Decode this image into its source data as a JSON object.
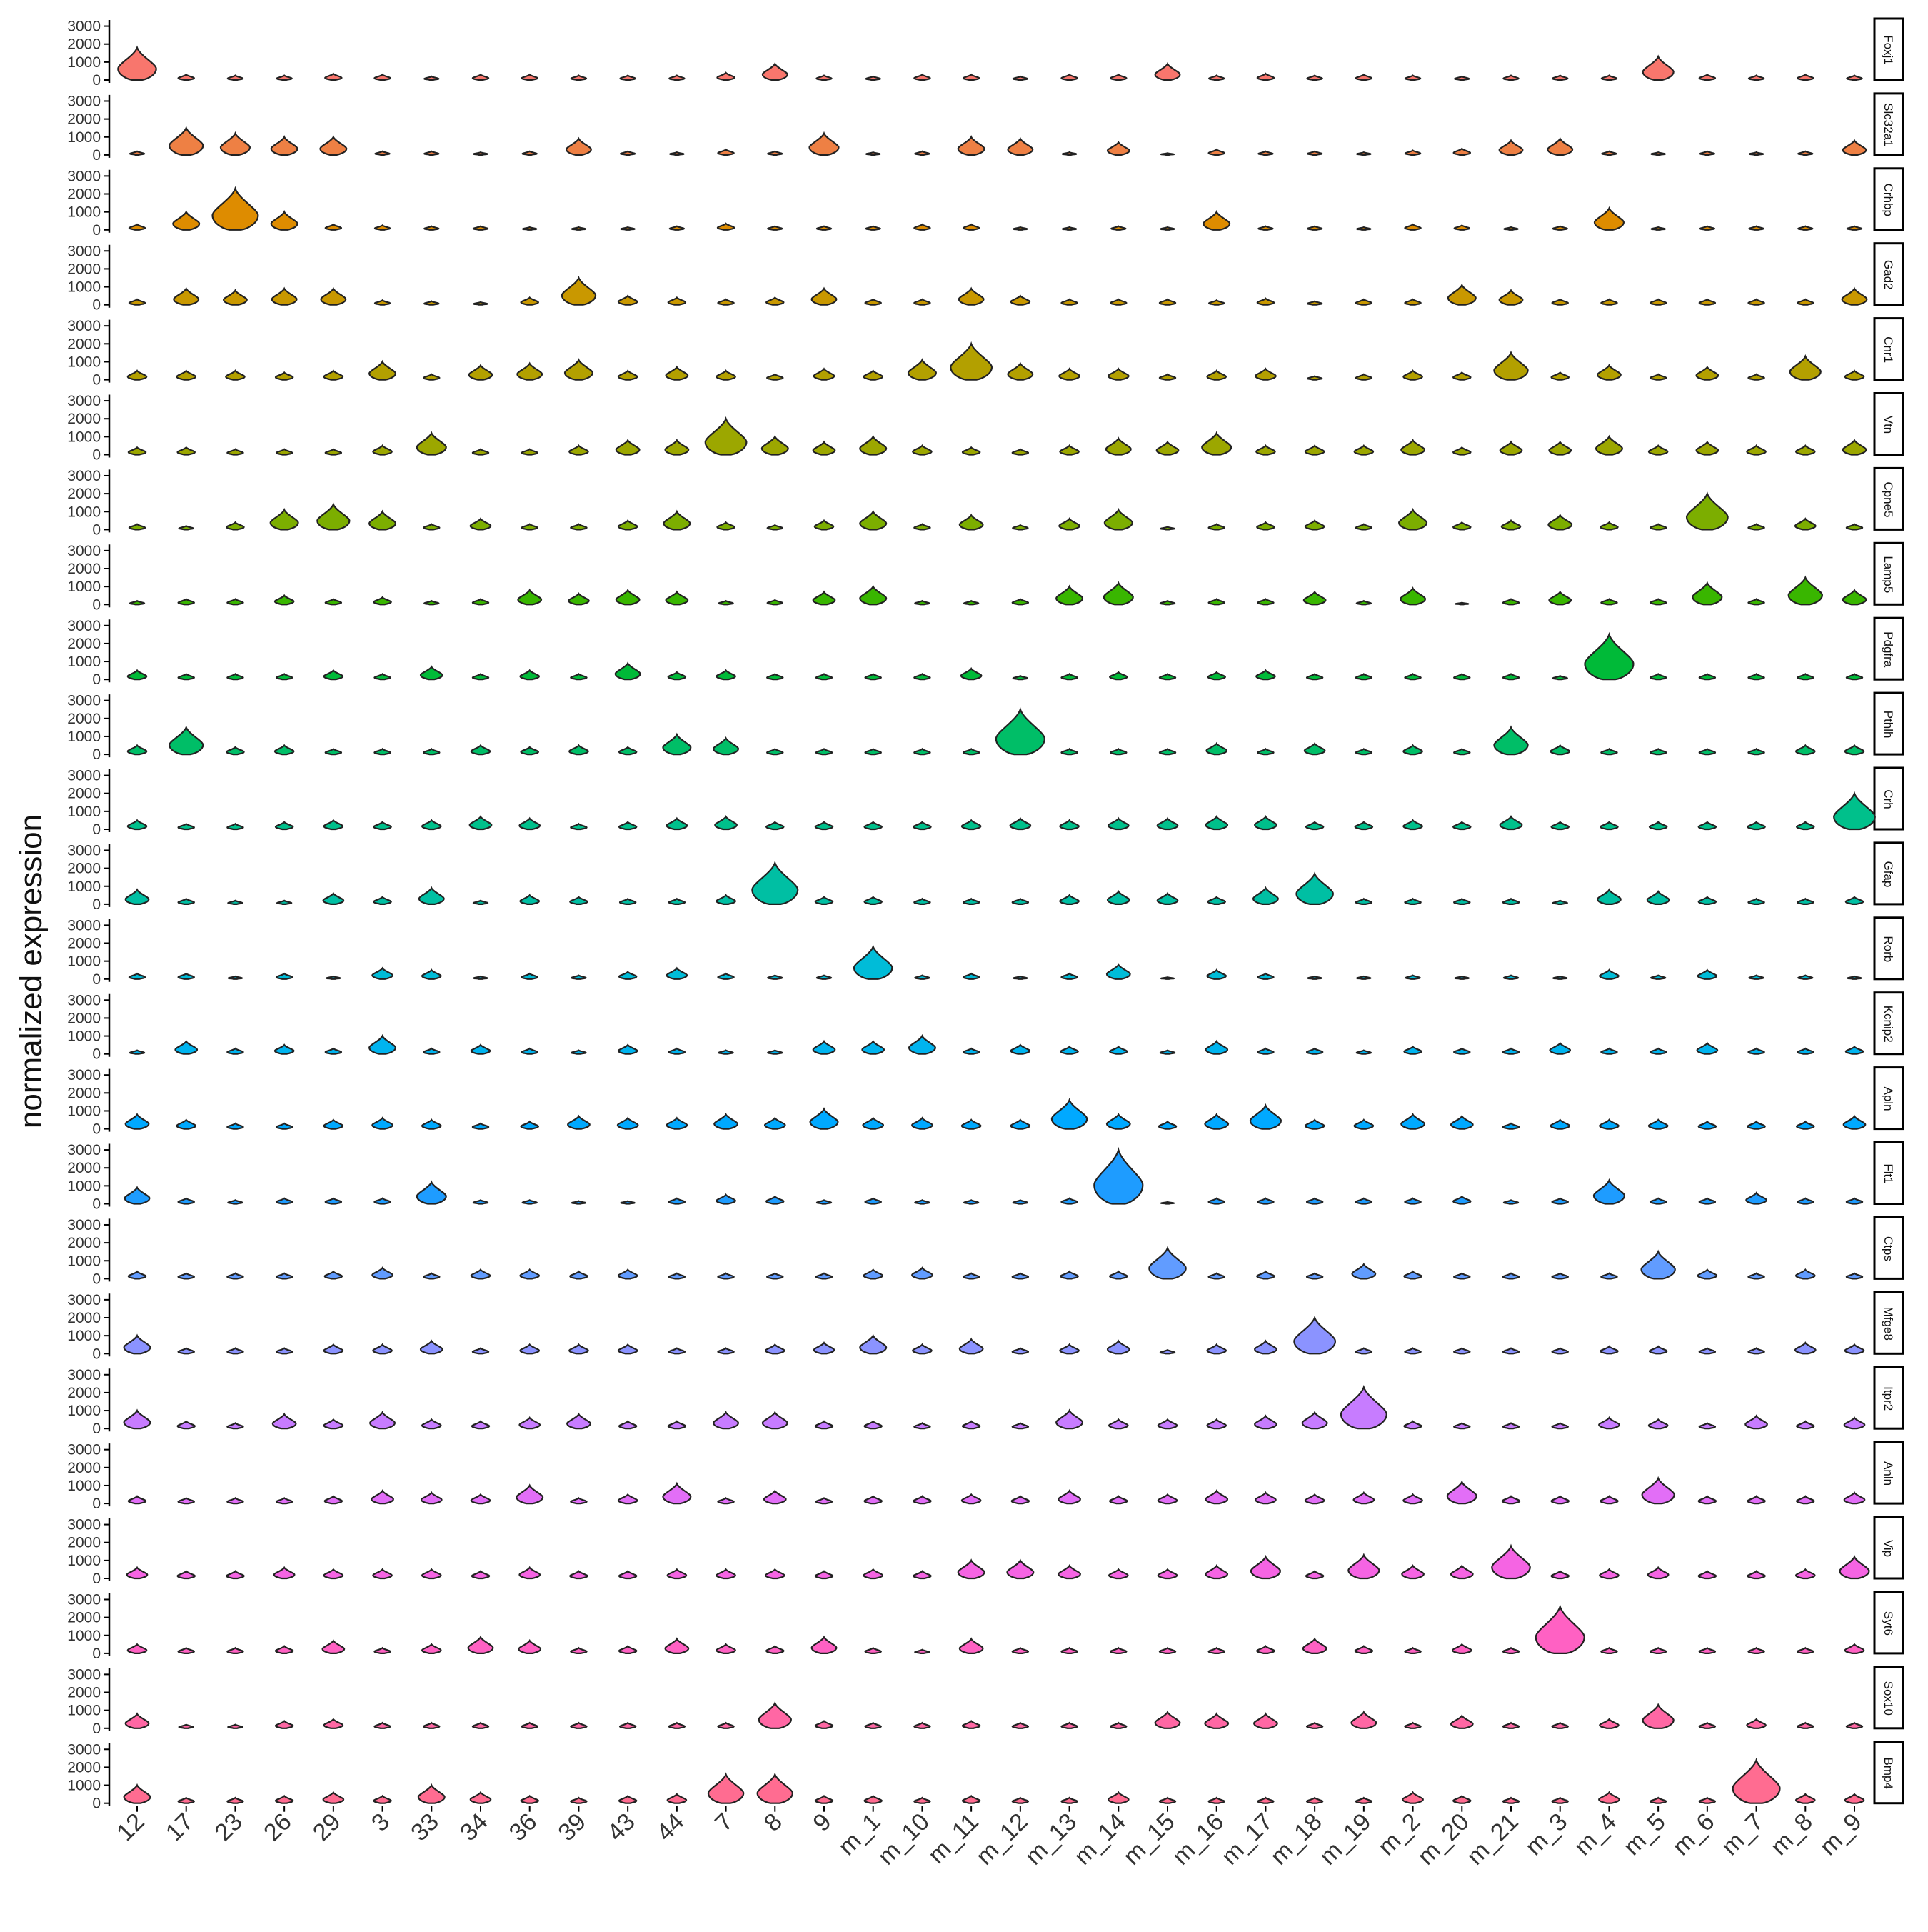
{
  "chart_data": {
    "type": "violin",
    "ylabel": "normalized expression",
    "yticks": [
      0,
      1000,
      2000,
      3000
    ],
    "ylim": [
      0,
      3500
    ],
    "clusters": [
      "12",
      "17",
      "23",
      "26",
      "29",
      "3",
      "33",
      "34",
      "36",
      "39",
      "43",
      "44",
      "7",
      "8",
      "9",
      "m_1",
      "m_10",
      "m_11",
      "m_12",
      "m_13",
      "m_14",
      "m_15",
      "m_16",
      "m_17",
      "m_18",
      "m_19",
      "m_2",
      "m_20",
      "m_21",
      "m_3",
      "m_4",
      "m_5",
      "m_6",
      "m_7",
      "m_8",
      "m_9"
    ],
    "genes": [
      "Foxj1",
      "Slc32a1",
      "Crhbp",
      "Gad2",
      "Cnr1",
      "Vtn",
      "Cpne5",
      "Lamp5",
      "Pdgfra",
      "Pthlh",
      "Crh",
      "Gfap",
      "Rorb",
      "Kcnip2",
      "Apln",
      "Flt1",
      "Ctps",
      "Mfge8",
      "Itpr2",
      "Anln",
      "Vip",
      "Syt6",
      "Sox10",
      "Bmp4"
    ],
    "colors": [
      "#F8766D",
      "#EE8044",
      "#DE8C00",
      "#C99800",
      "#B3A000",
      "#9CA700",
      "#7CAE00",
      "#39B600",
      "#00BA38",
      "#00BE67",
      "#00C08B",
      "#00BFA3",
      "#00BCD8",
      "#00B4EF",
      "#00A9FF",
      "#1E9CFF",
      "#619CFF",
      "#8B93FF",
      "#C77CFF",
      "#E26EF7",
      "#F564E3",
      "#FF61C3",
      "#FF67A4",
      "#FF6C91"
    ],
    "expression": [
      [
        1800,
        300,
        250,
        250,
        350,
        300,
        200,
        300,
        300,
        250,
        250,
        250,
        400,
        900,
        250,
        200,
        300,
        300,
        200,
        300,
        300,
        900,
        250,
        350,
        250,
        300,
        250,
        200,
        250,
        250,
        250,
        1300,
        300,
        250,
        300,
        250
      ],
      [
        200,
        1500,
        1200,
        1000,
        1000,
        200,
        200,
        150,
        200,
        900,
        200,
        150,
        300,
        200,
        1200,
        150,
        200,
        1000,
        900,
        150,
        700,
        100,
        300,
        200,
        200,
        150,
        250,
        350,
        800,
        900,
        200,
        150,
        200,
        150,
        200,
        800
      ],
      [
        300,
        1000,
        2300,
        1000,
        300,
        250,
        200,
        200,
        150,
        150,
        150,
        200,
        350,
        200,
        200,
        200,
        300,
        300,
        150,
        150,
        200,
        150,
        1000,
        200,
        200,
        150,
        300,
        250,
        150,
        200,
        1200,
        150,
        200,
        200,
        200,
        200
      ],
      [
        300,
        900,
        800,
        900,
        900,
        250,
        200,
        150,
        400,
        1500,
        500,
        400,
        300,
        400,
        900,
        300,
        300,
        900,
        500,
        300,
        300,
        300,
        250,
        350,
        200,
        300,
        300,
        1100,
        800,
        300,
        300,
        300,
        300,
        300,
        300,
        900
      ],
      [
        500,
        500,
        500,
        400,
        500,
        1000,
        300,
        800,
        900,
        1100,
        500,
        700,
        500,
        300,
        600,
        500,
        1100,
        2000,
        900,
        600,
        600,
        300,
        500,
        600,
        200,
        300,
        500,
        400,
        1500,
        400,
        800,
        300,
        700,
        300,
        1300,
        500
      ],
      [
        400,
        400,
        300,
        300,
        300,
        500,
        1200,
        300,
        300,
        500,
        800,
        800,
        2000,
        1000,
        700,
        1000,
        500,
        400,
        300,
        500,
        900,
        700,
        1200,
        500,
        500,
        500,
        800,
        400,
        700,
        700,
        1000,
        500,
        700,
        500,
        500,
        800
      ],
      [
        300,
        200,
        400,
        1100,
        1400,
        1000,
        300,
        600,
        300,
        300,
        500,
        1000,
        400,
        250,
        500,
        1000,
        300,
        800,
        250,
        600,
        1100,
        150,
        300,
        400,
        500,
        300,
        1100,
        400,
        500,
        800,
        400,
        300,
        2000,
        300,
        600,
        300
      ],
      [
        200,
        300,
        300,
        500,
        300,
        400,
        200,
        300,
        800,
        600,
        800,
        700,
        200,
        250,
        700,
        1000,
        200,
        200,
        300,
        1000,
        1200,
        200,
        300,
        300,
        700,
        200,
        900,
        100,
        300,
        700,
        300,
        300,
        1200,
        300,
        1500,
        800
      ],
      [
        500,
        300,
        300,
        300,
        500,
        300,
        700,
        300,
        500,
        300,
        900,
        400,
        500,
        300,
        300,
        300,
        300,
        600,
        200,
        300,
        400,
        300,
        400,
        500,
        300,
        300,
        300,
        300,
        300,
        200,
        2500,
        300,
        300,
        300,
        300,
        300
      ],
      [
        500,
        1500,
        400,
        500,
        300,
        300,
        300,
        500,
        400,
        500,
        400,
        1100,
        900,
        300,
        300,
        300,
        300,
        300,
        2500,
        300,
        300,
        300,
        600,
        300,
        600,
        300,
        500,
        300,
        1500,
        500,
        300,
        300,
        300,
        300,
        500,
        500
      ],
      [
        500,
        300,
        300,
        400,
        500,
        400,
        500,
        700,
        600,
        300,
        400,
        600,
        700,
        400,
        400,
        400,
        400,
        500,
        600,
        500,
        600,
        600,
        700,
        700,
        400,
        400,
        500,
        400,
        700,
        400,
        400,
        400,
        400,
        400,
        400,
        2000
      ],
      [
        800,
        300,
        200,
        200,
        600,
        400,
        900,
        200,
        500,
        400,
        300,
        300,
        500,
        2300,
        400,
        400,
        300,
        300,
        300,
        500,
        700,
        600,
        400,
        900,
        1700,
        300,
        300,
        300,
        300,
        200,
        800,
        700,
        400,
        300,
        300,
        400
      ],
      [
        300,
        300,
        150,
        300,
        150,
        600,
        500,
        150,
        300,
        200,
        400,
        600,
        300,
        200,
        200,
        1800,
        200,
        300,
        150,
        300,
        800,
        100,
        500,
        300,
        150,
        150,
        200,
        150,
        200,
        150,
        500,
        200,
        500,
        200,
        200,
        150
      ],
      [
        200,
        700,
        300,
        500,
        300,
        1000,
        300,
        500,
        300,
        200,
        500,
        300,
        200,
        200,
        700,
        700,
        1000,
        300,
        500,
        400,
        400,
        200,
        700,
        300,
        300,
        200,
        400,
        300,
        300,
        600,
        300,
        300,
        600,
        300,
        300,
        400
      ],
      [
        800,
        500,
        300,
        300,
        500,
        600,
        500,
        300,
        400,
        700,
        600,
        600,
        800,
        600,
        1100,
        600,
        600,
        500,
        500,
        1600,
        800,
        400,
        800,
        1300,
        500,
        500,
        800,
        700,
        300,
        500,
        500,
        500,
        400,
        400,
        400,
        700
      ],
      [
        900,
        300,
        200,
        300,
        300,
        300,
        1200,
        200,
        200,
        150,
        150,
        300,
        500,
        400,
        200,
        300,
        200,
        200,
        200,
        300,
        3000,
        100,
        300,
        300,
        300,
        300,
        300,
        400,
        200,
        300,
        1300,
        300,
        300,
        600,
        300,
        300
      ],
      [
        400,
        300,
        300,
        300,
        400,
        600,
        300,
        500,
        500,
        400,
        500,
        300,
        300,
        300,
        300,
        500,
        600,
        300,
        300,
        400,
        400,
        1700,
        300,
        400,
        300,
        800,
        400,
        300,
        300,
        300,
        300,
        1500,
        500,
        300,
        500,
        300
      ],
      [
        1000,
        300,
        300,
        300,
        500,
        500,
        700,
        300,
        500,
        500,
        500,
        300,
        300,
        500,
        600,
        1000,
        500,
        800,
        300,
        500,
        700,
        200,
        500,
        700,
        2000,
        300,
        300,
        300,
        300,
        300,
        400,
        400,
        300,
        300,
        600,
        500
      ],
      [
        1000,
        400,
        300,
        800,
        500,
        900,
        500,
        400,
        600,
        800,
        400,
        400,
        900,
        900,
        400,
        400,
        300,
        400,
        300,
        1000,
        500,
        500,
        500,
        700,
        900,
        2300,
        400,
        300,
        300,
        300,
        600,
        500,
        300,
        700,
        400,
        600
      ],
      [
        400,
        300,
        300,
        300,
        400,
        700,
        600,
        500,
        1000,
        300,
        500,
        1100,
        300,
        700,
        300,
        400,
        400,
        500,
        400,
        700,
        400,
        500,
        700,
        600,
        500,
        600,
        500,
        1200,
        400,
        400,
        400,
        1400,
        400,
        400,
        400,
        600
      ],
      [
        600,
        400,
        400,
        600,
        500,
        500,
        500,
        400,
        600,
        400,
        400,
        500,
        500,
        500,
        400,
        500,
        400,
        1000,
        1000,
        700,
        500,
        500,
        700,
        1200,
        400,
        1300,
        700,
        700,
        1800,
        400,
        500,
        600,
        400,
        400,
        500,
        1200
      ],
      [
        500,
        300,
        300,
        400,
        700,
        300,
        500,
        900,
        700,
        300,
        400,
        800,
        500,
        400,
        900,
        300,
        200,
        800,
        300,
        300,
        300,
        300,
        300,
        400,
        800,
        400,
        300,
        500,
        300,
        2600,
        300,
        300,
        300,
        300,
        300,
        500
      ],
      [
        800,
        200,
        200,
        400,
        500,
        300,
        300,
        300,
        300,
        300,
        300,
        300,
        300,
        1400,
        400,
        300,
        300,
        400,
        300,
        300,
        300,
        900,
        800,
        800,
        300,
        900,
        300,
        700,
        300,
        300,
        500,
        1300,
        300,
        500,
        300,
        300
      ],
      [
        1000,
        300,
        300,
        400,
        600,
        400,
        1000,
        600,
        400,
        300,
        400,
        500,
        1600,
        1600,
        400,
        400,
        300,
        400,
        300,
        300,
        600,
        300,
        300,
        300,
        300,
        300,
        600,
        400,
        300,
        300,
        600,
        300,
        300,
        2400,
        500,
        500
      ]
    ]
  }
}
